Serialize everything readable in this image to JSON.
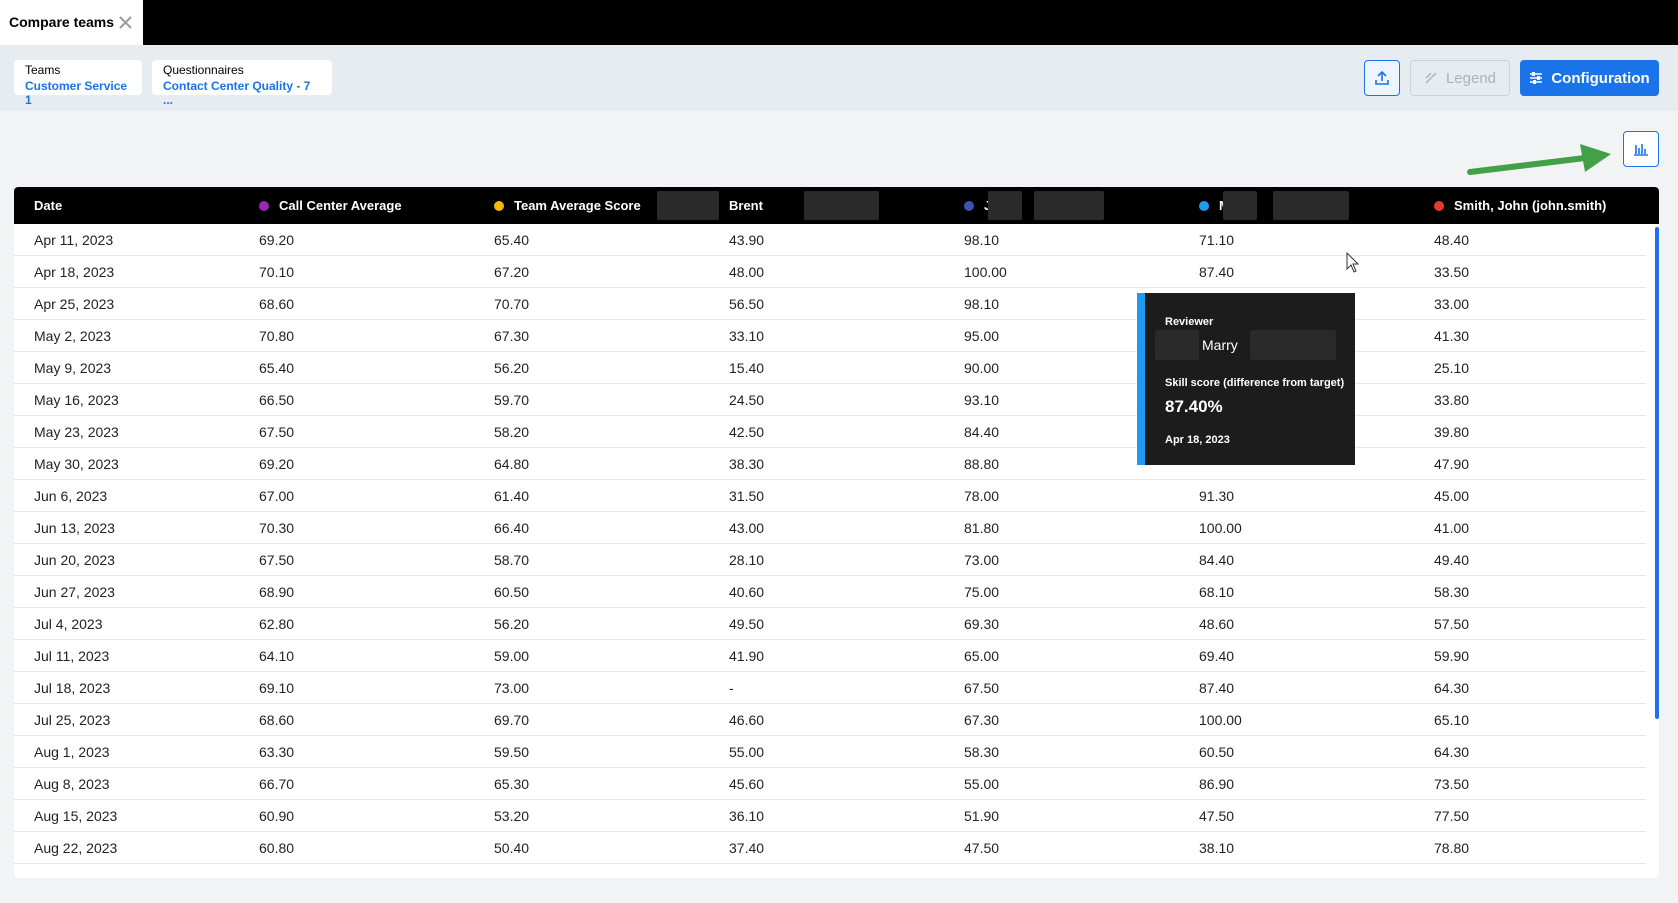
{
  "tab": {
    "title": "Compare teams"
  },
  "filters": [
    {
      "label": "Teams",
      "value": "Customer Service 1"
    },
    {
      "label": "Questionnaires",
      "value": "Contact Center Quality - 7 ..."
    }
  ],
  "buttons": {
    "legend": "Legend",
    "configuration": "Configuration"
  },
  "table": {
    "columns": [
      {
        "name": "Date"
      },
      {
        "name": "Call Center Average",
        "color": "#9c27b0"
      },
      {
        "name": "Team Average Score",
        "color": "#f5b800"
      },
      {
        "name": "Brent"
      },
      {
        "name": "Judy",
        "color": "#3f51b5"
      },
      {
        "name": "Marry",
        "color": "#1e9bf0"
      },
      {
        "name": "Smith, John (john.smith)",
        "color": "#e53935"
      }
    ],
    "rows": [
      [
        "Apr 11, 2023",
        "69.20",
        "65.40",
        "43.90",
        "98.10",
        "71.10",
        "48.40"
      ],
      [
        "Apr 18, 2023",
        "70.10",
        "67.20",
        "48.00",
        "100.00",
        "87.40",
        "33.50"
      ],
      [
        "Apr 25, 2023",
        "68.60",
        "70.70",
        "56.50",
        "98.10",
        null,
        "33.00"
      ],
      [
        "May 2, 2023",
        "70.80",
        "67.30",
        "33.10",
        "95.00",
        null,
        "41.30"
      ],
      [
        "May 9, 2023",
        "65.40",
        "56.20",
        "15.40",
        "90.00",
        null,
        "25.10"
      ],
      [
        "May 16, 2023",
        "66.50",
        "59.70",
        "24.50",
        "93.10",
        null,
        "33.80"
      ],
      [
        "May 23, 2023",
        "67.50",
        "58.20",
        "42.50",
        "84.40",
        null,
        "39.80"
      ],
      [
        "May 30, 2023",
        "69.20",
        "64.80",
        "38.30",
        "88.80",
        null,
        "47.90"
      ],
      [
        "Jun 6, 2023",
        "67.00",
        "61.40",
        "31.50",
        "78.00",
        "91.30",
        "45.00"
      ],
      [
        "Jun 13, 2023",
        "70.30",
        "66.40",
        "43.00",
        "81.80",
        "100.00",
        "41.00"
      ],
      [
        "Jun 20, 2023",
        "67.50",
        "58.70",
        "28.10",
        "73.00",
        "84.40",
        "49.40"
      ],
      [
        "Jun 27, 2023",
        "68.90",
        "60.50",
        "40.60",
        "75.00",
        "68.10",
        "58.30"
      ],
      [
        "Jul 4, 2023",
        "62.80",
        "56.20",
        "49.50",
        "69.30",
        "48.60",
        "57.50"
      ],
      [
        "Jul 11, 2023",
        "64.10",
        "59.00",
        "41.90",
        "65.00",
        "69.40",
        "59.90"
      ],
      [
        "Jul 18, 2023",
        "69.10",
        "73.00",
        "-",
        "67.50",
        "87.40",
        "64.30"
      ],
      [
        "Jul 25, 2023",
        "68.60",
        "69.70",
        "46.60",
        "67.30",
        "100.00",
        "65.10"
      ],
      [
        "Aug 1, 2023",
        "63.30",
        "59.50",
        "55.00",
        "58.30",
        "60.50",
        "64.30"
      ],
      [
        "Aug 8, 2023",
        "66.70",
        "65.30",
        "45.60",
        "55.00",
        "86.90",
        "73.50"
      ],
      [
        "Aug 15, 2023",
        "60.90",
        "53.20",
        "36.10",
        "51.90",
        "47.50",
        "77.50"
      ],
      [
        "Aug 22, 2023",
        "60.80",
        "50.40",
        "37.40",
        "47.50",
        "38.10",
        "78.80"
      ]
    ]
  },
  "tooltip": {
    "label": "Reviewer",
    "name": "Marry",
    "metric": "Skill score (difference from target)",
    "value": "87.40%",
    "date": "Apr 18, 2023"
  }
}
